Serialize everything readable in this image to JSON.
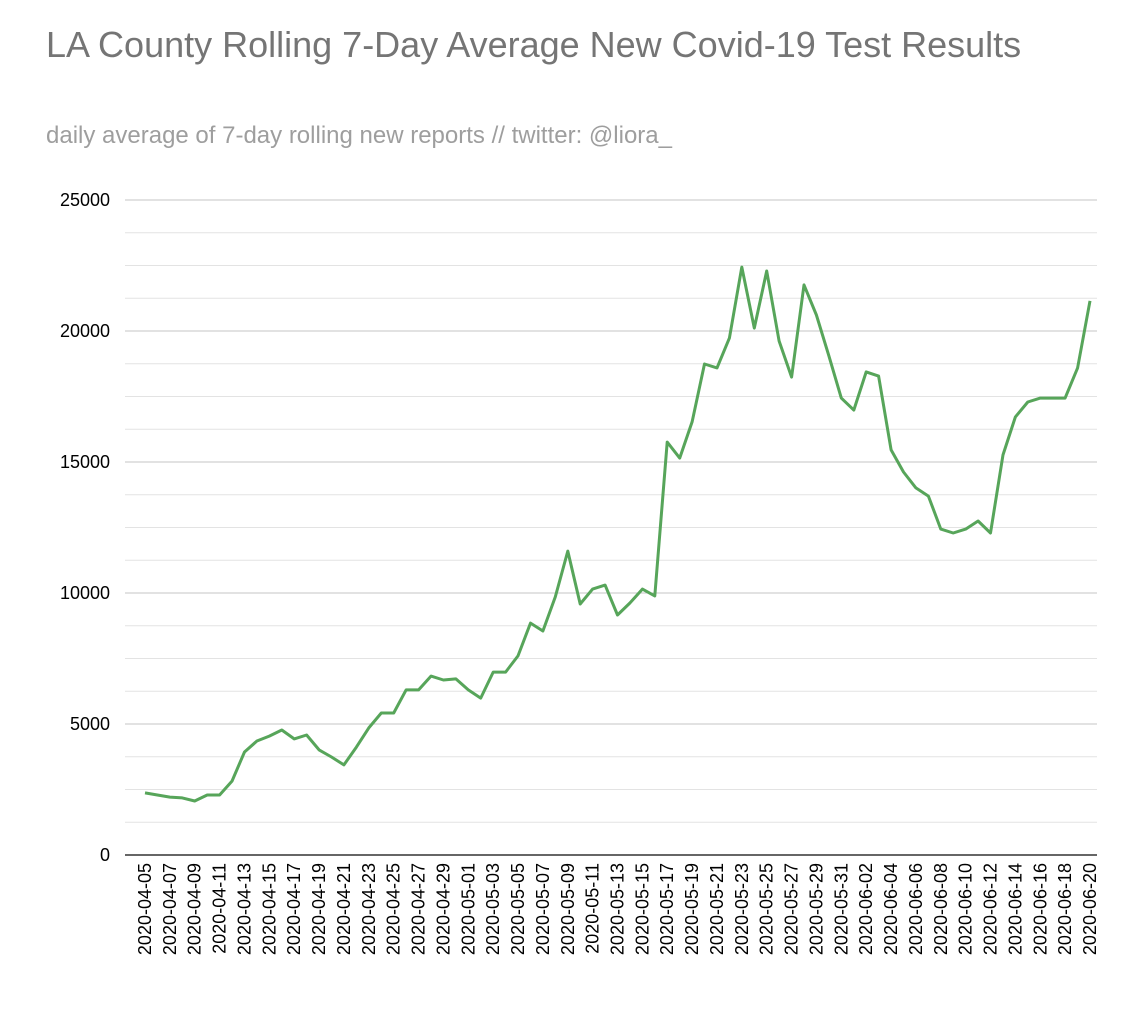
{
  "chart_data": {
    "type": "line",
    "title": "LA County Rolling 7-Day Average New Covid-19 Test Results",
    "subtitle": "daily average of 7-day rolling new reports // twitter: @liora_",
    "categories": [
      "2020-04-05",
      null,
      "2020-04-07",
      null,
      "2020-04-09",
      null,
      "2020-04-11",
      null,
      "2020-04-13",
      null,
      "2020-04-15",
      null,
      "2020-04-17",
      null,
      "2020-04-19",
      null,
      "2020-04-21",
      null,
      "2020-04-23",
      null,
      "2020-04-25",
      null,
      "2020-04-27",
      null,
      "2020-04-29",
      null,
      "2020-05-01",
      null,
      "2020-05-03",
      null,
      "2020-05-05",
      null,
      "2020-05-07",
      null,
      "2020-05-09",
      null,
      "2020-05-11",
      null,
      "2020-05-13",
      null,
      "2020-05-15",
      null,
      "2020-05-17",
      null,
      "2020-05-19",
      null,
      "2020-05-21",
      null,
      "2020-05-23",
      null,
      "2020-05-25",
      null,
      "2020-05-27",
      null,
      "2020-05-29",
      null,
      "2020-05-31",
      null,
      "2020-06-02",
      null,
      "2020-06-04",
      null,
      "2020-06-06",
      null,
      "2020-06-08",
      null,
      "2020-06-10",
      null,
      "2020-06-12",
      null,
      "2020-06-14",
      null,
      "2020-06-16",
      null,
      "2020-06-18",
      null,
      "2020-06-20"
    ],
    "series": [
      {
        "color": "#57a55a",
        "values": [
          2370,
          2290,
          2210,
          2180,
          2060,
          2290,
          2290,
          2820,
          3930,
          4350,
          4540,
          4770,
          4430,
          4580,
          4010,
          3740,
          3440,
          4120,
          4850,
          5420,
          5420,
          6300,
          6300,
          6830,
          6680,
          6720,
          6300,
          5990,
          6980,
          6980,
          7600,
          8850,
          8550,
          9850,
          11600,
          9580,
          10150,
          10300,
          9160,
          9620,
          10150,
          9890,
          15760,
          15150,
          16530,
          18740,
          18590,
          19730,
          22440,
          20110,
          22290,
          19620,
          18240,
          21760,
          20610,
          19050,
          17440,
          16980,
          18440,
          18280,
          15460,
          14620,
          14010,
          13700,
          12440,
          12290,
          12440,
          12750,
          12290,
          15270,
          16720,
          17290,
          17440,
          17440,
          17440,
          18590,
          21150
        ]
      }
    ],
    "ylim": [
      0,
      25000
    ],
    "yticks": [
      0,
      5000,
      10000,
      15000,
      20000,
      25000
    ],
    "grid": true,
    "minor_grid_per_major": 4
  }
}
